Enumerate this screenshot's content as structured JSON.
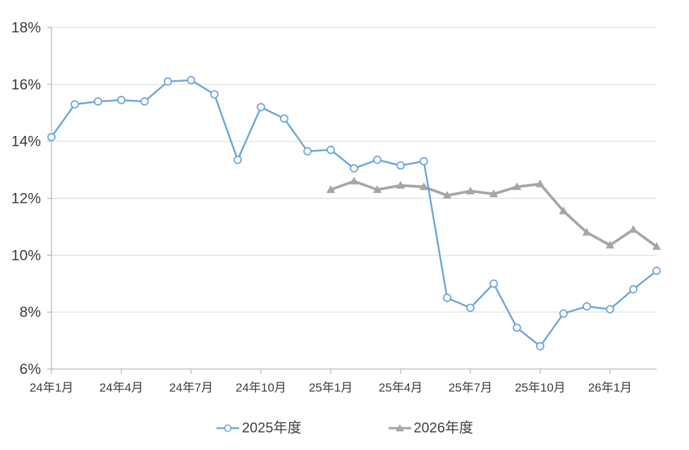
{
  "chart_data": {
    "type": "line",
    "title": "",
    "xlabel": "",
    "ylabel": "",
    "ylim": [
      6,
      18
    ],
    "grid": true,
    "legend_position": "bottom",
    "months": [
      "24年1月",
      "24年2月",
      "24年3月",
      "24年4月",
      "24年5月",
      "24年6月",
      "24年7月",
      "24年8月",
      "24年9月",
      "24年10月",
      "24年11月",
      "24年12月",
      "25年1月",
      "25年2月",
      "25年3月",
      "25年4月",
      "25年5月",
      "25年6月",
      "25年7月",
      "25年8月",
      "25年9月",
      "25年10月",
      "25年11月",
      "25年12月",
      "26年1月",
      "26年2月",
      "26年3月"
    ],
    "x_tick_labels": [
      "24年1月",
      "24年4月",
      "24年7月",
      "24年10月",
      "25年1月",
      "25年4月",
      "25年7月",
      "25年10月",
      "26年1月"
    ],
    "x_tick_indices": [
      0,
      3,
      6,
      9,
      12,
      15,
      18,
      21,
      24
    ],
    "y_ticks": [
      6,
      8,
      10,
      12,
      14,
      16,
      18
    ],
    "y_tick_labels": [
      "6%",
      "8%",
      "10%",
      "12%",
      "14%",
      "16%",
      "18%"
    ],
    "series": [
      {
        "name": "2025年度",
        "color": "#6ca5db",
        "marker": "circle",
        "marker_fill": "#ffffff",
        "start_index": 0,
        "values": [
          14.15,
          15.3,
          15.4,
          15.45,
          15.4,
          16.1,
          16.15,
          15.65,
          13.35,
          15.2,
          14.8,
          13.65,
          13.7,
          13.05,
          13.35,
          13.15,
          13.3,
          8.5,
          8.15,
          9.0,
          7.45,
          6.8,
          7.95,
          8.2,
          8.1,
          8.8,
          9.45
        ]
      },
      {
        "name": "2026年度",
        "color": "#a6a6a6",
        "marker": "triangle",
        "marker_fill": "#a6a6a6",
        "start_index": 12,
        "values": [
          12.3,
          12.6,
          12.3,
          12.45,
          12.4,
          12.1,
          12.25,
          12.15,
          12.4,
          12.5,
          11.55,
          10.8,
          10.35,
          10.9,
          10.3
        ]
      }
    ],
    "colors": {
      "grid": "#d9d9d9",
      "axis": "#a6a6a6",
      "tick_label": "#3c3c3c"
    }
  }
}
